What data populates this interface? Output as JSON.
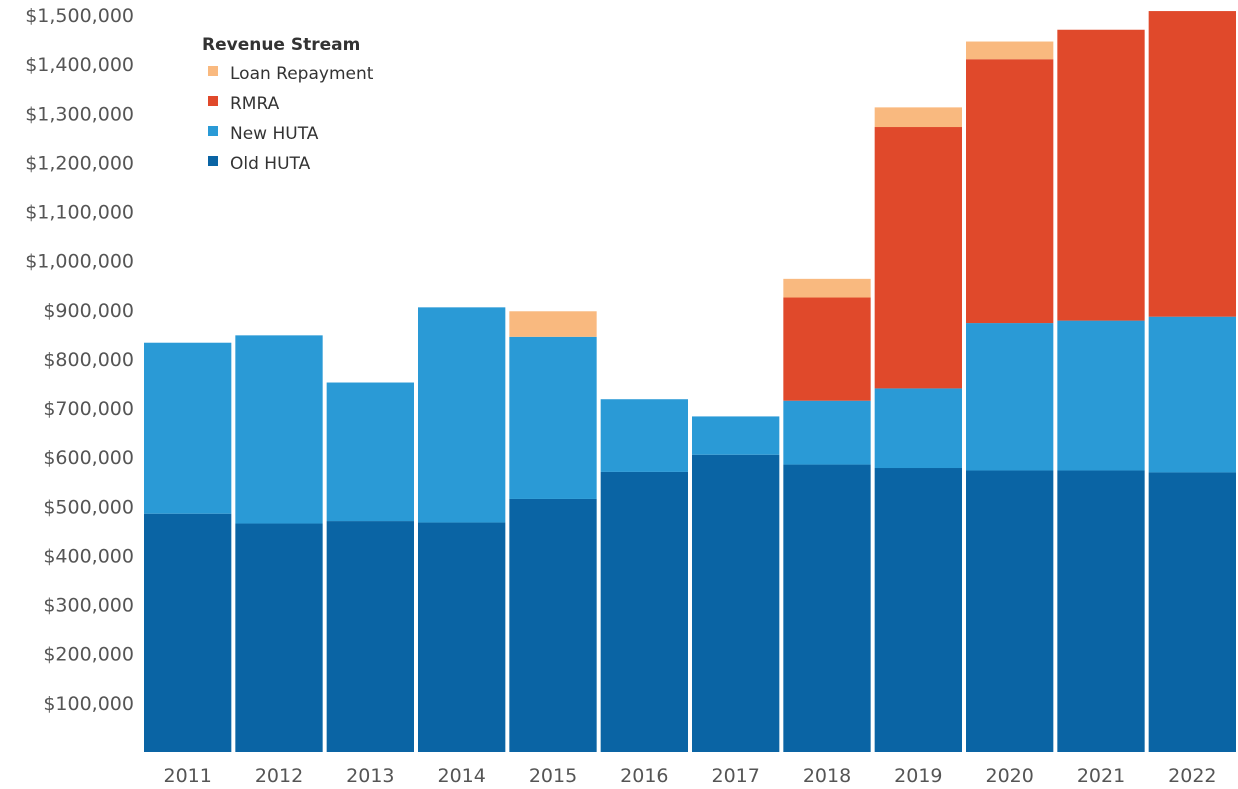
{
  "chart_data": {
    "type": "bar",
    "stacked": true,
    "categories": [
      "2011",
      "2012",
      "2013",
      "2014",
      "2015",
      "2016",
      "2017",
      "2018",
      "2019",
      "2020",
      "2021",
      "2022"
    ],
    "series": [
      {
        "name": "Old HUTA",
        "color": "#0a64a4",
        "values": [
          485000,
          465000,
          470000,
          467000,
          515000,
          570000,
          605000,
          585000,
          578000,
          573000,
          573000,
          569000
        ]
      },
      {
        "name": "New HUTA",
        "color": "#2a9ad6",
        "values": [
          348000,
          383000,
          282000,
          438000,
          330000,
          148000,
          78000,
          130000,
          162000,
          300000,
          305000,
          317000
        ]
      },
      {
        "name": "RMRA",
        "color": "#e0492b",
        "values": [
          0,
          0,
          0,
          0,
          0,
          0,
          0,
          210000,
          532000,
          537000,
          592000,
          622000
        ]
      },
      {
        "name": "Loan Repayment",
        "color": "#f9b97f",
        "values": [
          0,
          0,
          0,
          0,
          52000,
          0,
          0,
          38000,
          40000,
          36000,
          0,
          0
        ]
      }
    ],
    "ylim": [
      0,
      1500000
    ],
    "y_ticks": [
      "$100,000",
      "$200,000",
      "$300,000",
      "$400,000",
      "$500,000",
      "$600,000",
      "$700,000",
      "$800,000",
      "$900,000",
      "$1,000,000",
      "$1,100,000",
      "$1,200,000",
      "$1,300,000",
      "$1,400,000",
      "$1,500,000"
    ],
    "y_tick_values": [
      100000,
      200000,
      300000,
      400000,
      500000,
      600000,
      700000,
      800000,
      900000,
      1000000,
      1100000,
      1200000,
      1300000,
      1400000,
      1500000
    ],
    "grid": false,
    "legend": {
      "title": "Revenue Stream",
      "position": "top-left",
      "items": [
        {
          "label": "Loan Repayment",
          "color": "#f9b97f"
        },
        {
          "label": "RMRA",
          "color": "#e0492b"
        },
        {
          "label": "New HUTA",
          "color": "#2a9ad6"
        },
        {
          "label": "Old HUTA",
          "color": "#0a64a4"
        }
      ]
    }
  }
}
